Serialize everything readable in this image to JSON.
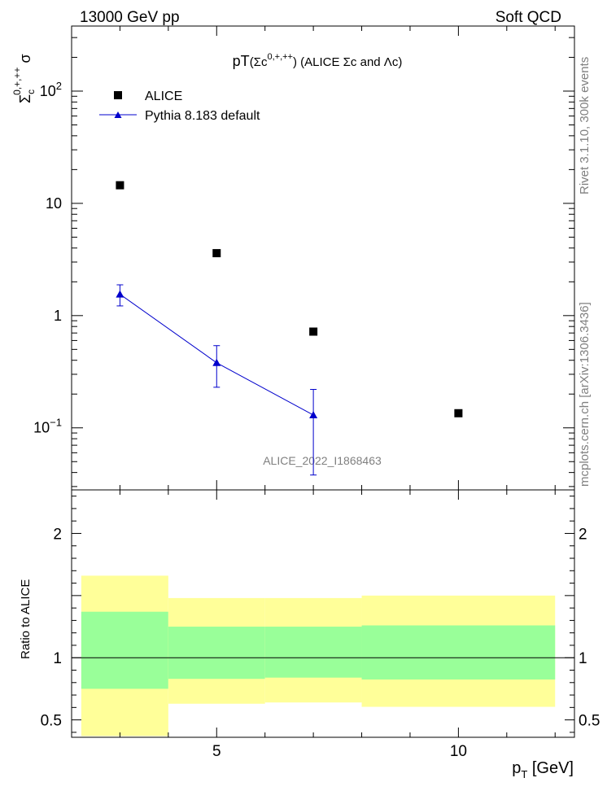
{
  "header": {
    "left_label": "13000 GeV pp",
    "right_label": "Soft QCD"
  },
  "side_labels": {
    "rivet": "Rivet 3.1.10,  300k events",
    "mcplots": "mcplots.cern.ch [arXiv:1306.3436]"
  },
  "colors": {
    "data": "#000000",
    "mc": "#0000cc",
    "band_inner": "#99ff99",
    "band_outer": "#ffff99"
  },
  "chart_data": [
    {
      "type": "scatter",
      "panel": "main",
      "title_main": "pT",
      "title_detail": "(Σc",
      "title_sup": "0,+,++",
      "title_rest": ") (ALICE Σc and Λc)",
      "ylabel_base": "Σ",
      "ylabel_sub": "c",
      "ylabel_sup": "0,+,++",
      "ylabel_tail": " σ",
      "yscale": "log",
      "ylim": [
        0.028,
        380
      ],
      "xlim": [
        2,
        12.4
      ],
      "ytick_labels": [
        {
          "value": 0.1,
          "base": "10",
          "exp": "−1"
        },
        {
          "value": 1,
          "base": "1",
          "exp": ""
        },
        {
          "value": 10,
          "base": "10",
          "exp": ""
        },
        {
          "value": 100,
          "base": "10",
          "exp": "2"
        }
      ],
      "analysis_label": "ALICE_2022_I1868463",
      "series": [
        {
          "name": "ALICE",
          "marker": "square",
          "x": [
            3,
            5,
            7,
            10
          ],
          "y": [
            14.5,
            3.6,
            0.72,
            0.135
          ]
        },
        {
          "name": "Pythia 8.183 default",
          "marker": "triangle",
          "line": true,
          "x": [
            3,
            5,
            7
          ],
          "y": [
            1.55,
            0.38,
            0.13
          ],
          "yerr_low": [
            1.22,
            0.23,
            0.038
          ],
          "yerr_high": [
            1.88,
            0.54,
            0.22
          ]
        }
      ]
    },
    {
      "type": "area",
      "panel": "ratio",
      "ylabel": "Ratio to ALICE",
      "xlabel_main": "p",
      "xlabel_sub": "T",
      "xlabel_unit": " [GeV]",
      "xlim": [
        2,
        12.4
      ],
      "ylim": [
        0.36,
        2.35
      ],
      "ytick_labels": [
        {
          "value": 0.5,
          "label": "0.5"
        },
        {
          "value": 1,
          "label": "1"
        },
        {
          "value": 2,
          "label": "2"
        }
      ],
      "xtick_labels": [
        {
          "value": 5,
          "label": "5"
        },
        {
          "value": 10,
          "label": "10"
        }
      ],
      "reference_line": 1,
      "bands": [
        {
          "x_low": 2.2,
          "x_high": 4,
          "inner_low": 0.75,
          "inner_high": 1.37,
          "outer_low": 0.37,
          "outer_high": 1.66
        },
        {
          "x_low": 4,
          "x_high": 6,
          "inner_low": 0.83,
          "inner_high": 1.25,
          "outer_low": 0.63,
          "outer_high": 1.48
        },
        {
          "x_low": 6,
          "x_high": 8,
          "inner_low": 0.84,
          "inner_high": 1.25,
          "outer_low": 0.64,
          "outer_high": 1.48
        },
        {
          "x_low": 8,
          "x_high": 12,
          "inner_low": 0.825,
          "inner_high": 1.26,
          "outer_low": 0.605,
          "outer_high": 1.5
        }
      ]
    }
  ]
}
